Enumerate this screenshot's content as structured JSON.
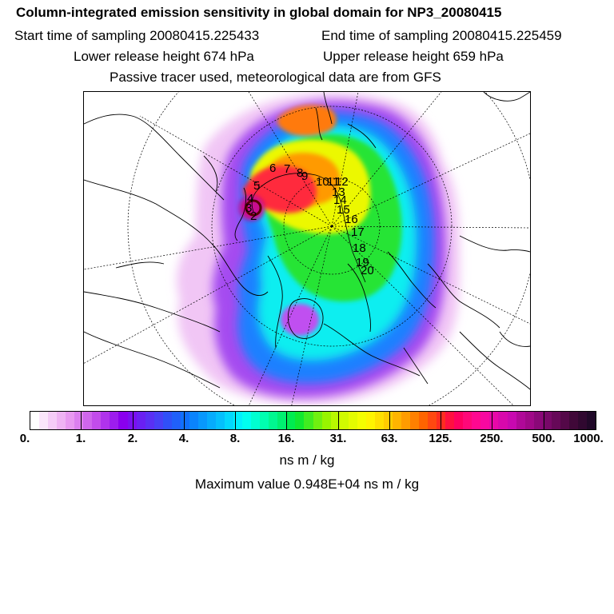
{
  "title": "Column-integrated emission sensitivity in global domain for NP3_20080415",
  "header": {
    "start_time": "Start time of sampling 20080415.225433",
    "end_time": "End time of sampling 20080415.225459",
    "lower_release": "Lower release height  674 hPa",
    "upper_release": "Upper release height  659 hPa",
    "tracer_note": "Passive tracer used, meteorological data are from GFS"
  },
  "colorbar": {
    "tick_labels": [
      "0.",
      "1.",
      "2.",
      "4.",
      "8.",
      "16.",
      "31.",
      "63.",
      "125.",
      "250.",
      "500.",
      "1000."
    ],
    "colors": [
      "#ffffff",
      "#fbe6fb",
      "#f5ccf7",
      "#efb3f3",
      "#e899f0",
      "#dc7fee",
      "#cf66ec",
      "#c24ceb",
      "#b033ec",
      "#9d1ded",
      "#8a00ee",
      "#7a10f0",
      "#6a20f2",
      "#5a30f4",
      "#4840f6",
      "#3050f8",
      "#2060fa",
      "#1070fc",
      "#0a84fd",
      "#0898fd",
      "#06acfd",
      "#04c0fd",
      "#02d8fd",
      "#00f0fd",
      "#00fff0",
      "#00ffd0",
      "#00ffb0",
      "#00f890",
      "#00f070",
      "#00ec50",
      "#10e830",
      "#40ec20",
      "#70f010",
      "#98f400",
      "#b8f800",
      "#d0fa00",
      "#e4fc00",
      "#f4fe00",
      "#fff400",
      "#ffe000",
      "#ffcc00",
      "#ffb400",
      "#ff9c00",
      "#ff8000",
      "#ff6400",
      "#ff4810",
      "#ff2c20",
      "#ff1040",
      "#ff0060",
      "#ff0878",
      "#ff0890",
      "#f808a0",
      "#e808a8",
      "#d808ac",
      "#c808b0",
      "#b00898",
      "#a00888",
      "#8a0878",
      "#780868",
      "#660858",
      "#540848",
      "#400838",
      "#300830",
      "#200828"
    ]
  },
  "units": "ns m / kg",
  "max_value": "Maximum value  0.948E+04 ns m / kg",
  "trajectory_labels": [
    "2",
    "3",
    "4",
    "5",
    "6",
    "7",
    "8",
    "9",
    "10",
    "11",
    "12",
    "13",
    "14",
    "15",
    "16",
    "17",
    "18",
    "19",
    "20"
  ],
  "palette": {
    "frame": "#000000",
    "coast": "#000000",
    "graticule": "#000000"
  }
}
